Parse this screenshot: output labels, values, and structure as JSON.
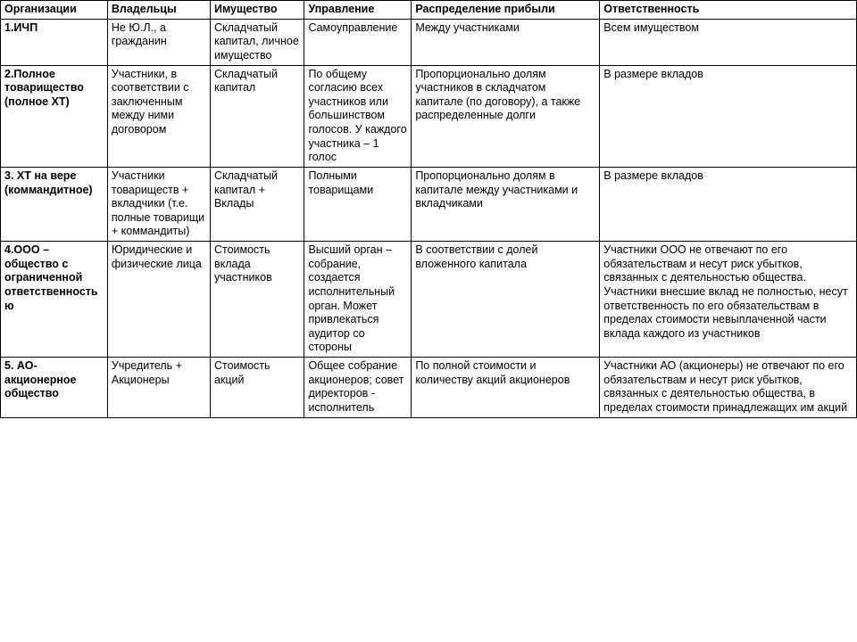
{
  "type": "table",
  "columns": [
    {
      "key": "org",
      "label": "Организации",
      "width": "12.5%",
      "bold": true
    },
    {
      "key": "own",
      "label": "Владельцы",
      "width": "12%"
    },
    {
      "key": "prop",
      "label": "Имущество",
      "width": "11%"
    },
    {
      "key": "mgmt",
      "label": "Управление",
      "width": "12.5%"
    },
    {
      "key": "profit",
      "label": "Распределение прибыли",
      "width": "22%"
    },
    {
      "key": "liab",
      "label": "Ответственность",
      "width": "30%"
    }
  ],
  "rows": [
    {
      "org": "1.ИЧП",
      "own": "Не Ю.Л., а гражданин",
      "prop": "Складчатый капитал, личное имущество",
      "mgmt": "Самоуправление",
      "profit": "Между участниками",
      "liab": "Всем имуществом"
    },
    {
      "org": "2.Полное товарищество (полное ХТ)",
      "own": "Участники, в соответствии с заключенным между ними договором",
      "prop": "Складчатый капитал",
      "mgmt": "По общему согласию всех участников или большинством голосов. У каждого участника – 1 голос",
      "profit": "Пропорционально долям участников в складчатом капитале (по договору), а также распределенные долги",
      "liab": "В размере вкладов"
    },
    {
      "org": "3. ХТ на вере (коммандитное)",
      "own": "Участники товариществ + вкладчики (т.е. полные товарищи + коммандиты)",
      "prop": "Складчатый капитал + Вклады",
      "mgmt": "Полными товарищами",
      "profit": "Пропорционально долям в капитале между участниками и вкладчиками",
      "liab": "В размере вкладов"
    },
    {
      "org": "4.ООО – общество с ограниченной ответственностью",
      "own": "Юридические и физические лица",
      "prop": "Стоимость вклада участников",
      "mgmt": "Высший орган – собрание, создается исполнительный орган. Может привлекаться аудитор со стороны",
      "profit": "В соответствии с долей вложенного капитала",
      "liab": "Участники ООО не отвечают по его обязательствам и несут риск убытков, связанных с деятельностью общества. Участники внесшие вклад не полностью, несут ответственность по его обязательствам в пределах стоимости невыплаченной части вклада каждого из участников"
    },
    {
      "org": "5. АО- акционерное общество",
      "own": "Учредитель + Акционеры",
      "prop": "Стоимость акций",
      "mgmt": "Общее собрание акционеров; совет директоров - исполнитель",
      "profit": "По полной стоимости и количеству акций акционеров",
      "liab": "Участники АО (акционеры) не отвечают по его обязательствам и несут риск убытков, связанных с деятельностью общества, в пределах стоимости принадлежащих им акций"
    }
  ],
  "style": {
    "font_family": "Arial, sans-serif",
    "font_size_pt": 9,
    "border_color": "#000000",
    "background_color": "#ffffff",
    "header_bold": true,
    "org_column_bold": true
  }
}
